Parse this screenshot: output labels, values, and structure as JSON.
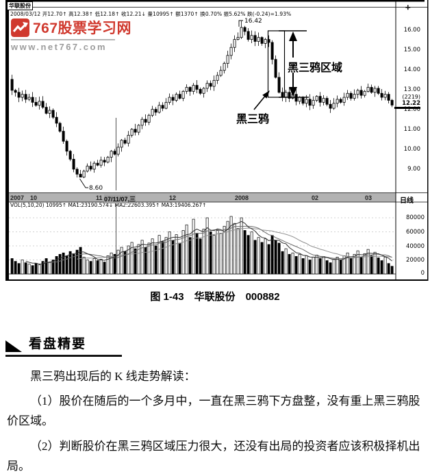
{
  "watermark": {
    "site_name": "767股票学习网",
    "url": "www.net767.com",
    "brand_color": "#d0392e"
  },
  "chart_header": {
    "stock_name": "华联股份",
    "info_line": "2008/03/12 开12.70↑ 高12.38↑ 低12.18↑ 收12.21↓ 量10995↑ 额1370↑ 换0.70% 振5.62% 跌(-0.24)=1.93%",
    "cursor_mark": "✛"
  },
  "chart_data": {
    "type": "candlestick",
    "period_label": "日线",
    "price_ticks": [
      "16.00",
      "15.00",
      "14.00",
      "13.00",
      "12.00",
      "11.00",
      "10.00",
      "9.00"
    ],
    "price_range": [
      9.0,
      16.0
    ],
    "current_price": "12.22",
    "current_price_aux": "(2219)",
    "volume_ticks": [
      "80000",
      "60000",
      "40000",
      "20000",
      "0"
    ],
    "volume_max": 80000,
    "time_axis": [
      "2007",
      "10",
      "11",
      "07/11/07,三",
      "12",
      "2008",
      "02",
      "03"
    ],
    "highlight_time_index": 3,
    "vol_indicator": "VOL(5,10,20) 10995↑ MA1:23190.574↓ MA2:22603.395↑ MA3:19406.267↑",
    "annotations": {
      "peak_price": "16.42",
      "low_price": "8.60",
      "crows_label": "黑三鸦",
      "crows_area_label": "黑三鸦区域"
    },
    "first_open": 13.5,
    "closes": [
      12.95,
      12.85,
      12.6,
      12.75,
      12.5,
      12.6,
      12.35,
      12.2,
      12.4,
      12.1,
      11.8,
      11.95,
      11.6,
      11.3,
      10.9,
      10.4,
      9.9,
      9.5,
      9.0,
      8.75,
      8.6,
      8.9,
      9.15,
      9.0,
      9.3,
      9.2,
      9.45,
      9.35,
      9.6,
      9.9,
      9.75,
      10.1,
      10.45,
      10.3,
      10.7,
      11.0,
      10.85,
      11.2,
      11.5,
      11.35,
      11.7,
      12.0,
      11.85,
      12.2,
      12.05,
      12.35,
      12.6,
      12.45,
      12.75,
      12.55,
      12.9,
      13.1,
      12.9,
      13.2,
      13.0,
      12.8,
      13.05,
      13.3,
      13.15,
      13.45,
      13.7,
      13.95,
      14.3,
      14.7,
      15.1,
      15.5,
      15.6,
      16.1,
      15.9,
      15.5,
      15.7,
      15.4,
      15.6,
      15.3,
      15.5,
      15.35,
      14.5,
      13.6,
      12.85,
      12.6,
      12.85,
      12.55,
      12.75,
      12.4,
      12.6,
      12.3,
      12.5,
      12.2,
      12.45,
      12.65,
      12.35,
      12.55,
      12.25,
      12.05,
      12.3,
      12.5,
      12.35,
      12.6,
      12.8,
      12.55,
      12.75,
      12.95,
      12.7,
      12.9,
      13.1,
      12.85,
      13.05,
      12.8,
      12.6,
      12.75,
      12.45,
      12.21
    ],
    "volumes_k": [
      22,
      18,
      15,
      20,
      16,
      14,
      12,
      15,
      13,
      18,
      22,
      17,
      20,
      25,
      28,
      30,
      26,
      32,
      28,
      34,
      38,
      24,
      20,
      18,
      22,
      19,
      21,
      17,
      26,
      30,
      28,
      34,
      38,
      32,
      40,
      45,
      36,
      42,
      48,
      38,
      44,
      50,
      40,
      55,
      46,
      52,
      60,
      48,
      56,
      44,
      62,
      70,
      52,
      78,
      58,
      50,
      64,
      80,
      60,
      55,
      62,
      58,
      68,
      75,
      82,
      72,
      65,
      80,
      62,
      55,
      60,
      48,
      52,
      45,
      50,
      42,
      55,
      48,
      44,
      32,
      36,
      28,
      30,
      25,
      28,
      22,
      26,
      20,
      24,
      27,
      22,
      25,
      19,
      16,
      21,
      24,
      20,
      26,
      30,
      22,
      28,
      33,
      24,
      29,
      35,
      26,
      31,
      23,
      19,
      24,
      15,
      11
    ]
  },
  "caption": "图 1-43　华联股份　000882",
  "section": {
    "heading": "看盘精要",
    "intro": "黑三鸦出现后的 K 线走势解读：",
    "paragraphs": [
      "（1）股价在随后的一个多月中，一直在黑三鸦下方盘整，没有重上黑三鸦股价区域。",
      "（2）判断股价在黑三鸦区域压力很大，还没有出局的投资者应该积极择机出局。"
    ]
  }
}
